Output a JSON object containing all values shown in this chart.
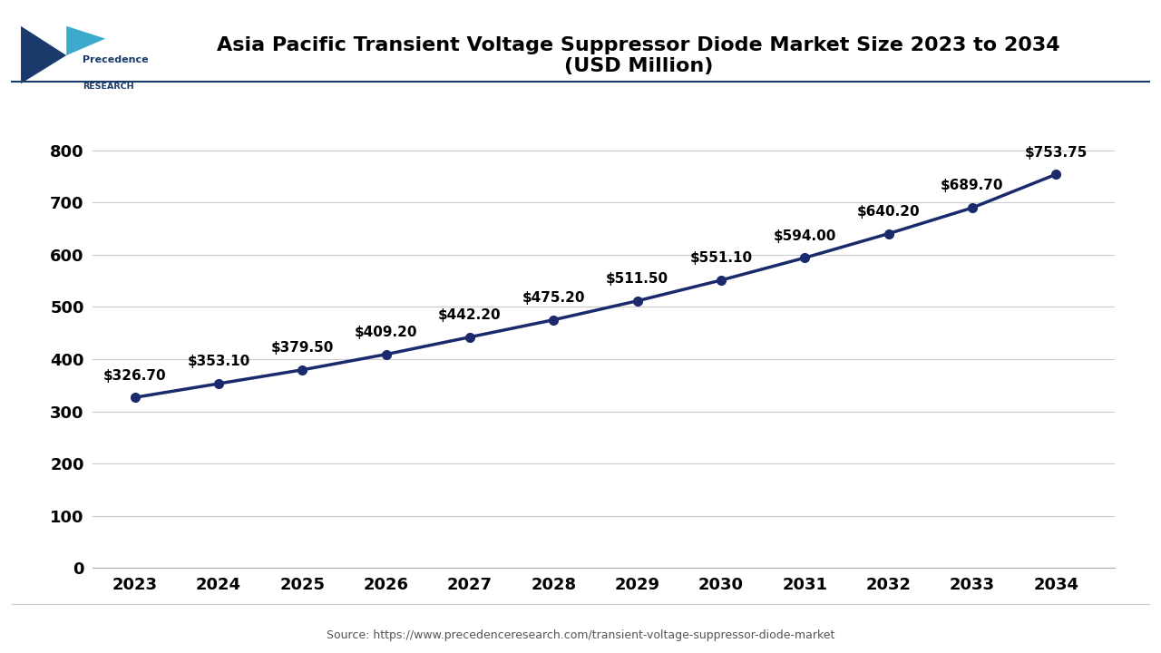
{
  "title": "Asia Pacific Transient Voltage Suppressor Diode Market Size 2023 to 2034\n(USD Million)",
  "years": [
    2023,
    2024,
    2025,
    2026,
    2027,
    2028,
    2029,
    2030,
    2031,
    2032,
    2033,
    2034
  ],
  "values": [
    326.7,
    353.1,
    379.5,
    409.2,
    442.2,
    475.2,
    511.5,
    551.1,
    594.0,
    640.2,
    689.7,
    753.75
  ],
  "labels": [
    "$326.70",
    "$353.10",
    "$379.50",
    "$409.20",
    "$442.20",
    "$475.20",
    "$511.50",
    "$551.10",
    "$594.00",
    "$640.20",
    "$689.70",
    "$753.75"
  ],
  "line_color": "#1a2a6c",
  "marker_color": "#1a2a6c",
  "background_color": "#ffffff",
  "plot_bg_color": "#ffffff",
  "grid_color": "#cccccc",
  "title_fontsize": 16,
  "label_fontsize": 11,
  "tick_fontsize": 13,
  "ylim": [
    0,
    900
  ],
  "yticks": [
    0,
    100,
    200,
    300,
    400,
    500,
    600,
    700,
    800
  ],
  "source_text": "Source: https://www.precedenceresearch.com/transient-voltage-suppressor-diode-market",
  "logo_line1": "Precedence",
  "logo_line2": "RESEARCH",
  "logo_dark": "#1a3a6c",
  "logo_teal": "#3aabcc"
}
